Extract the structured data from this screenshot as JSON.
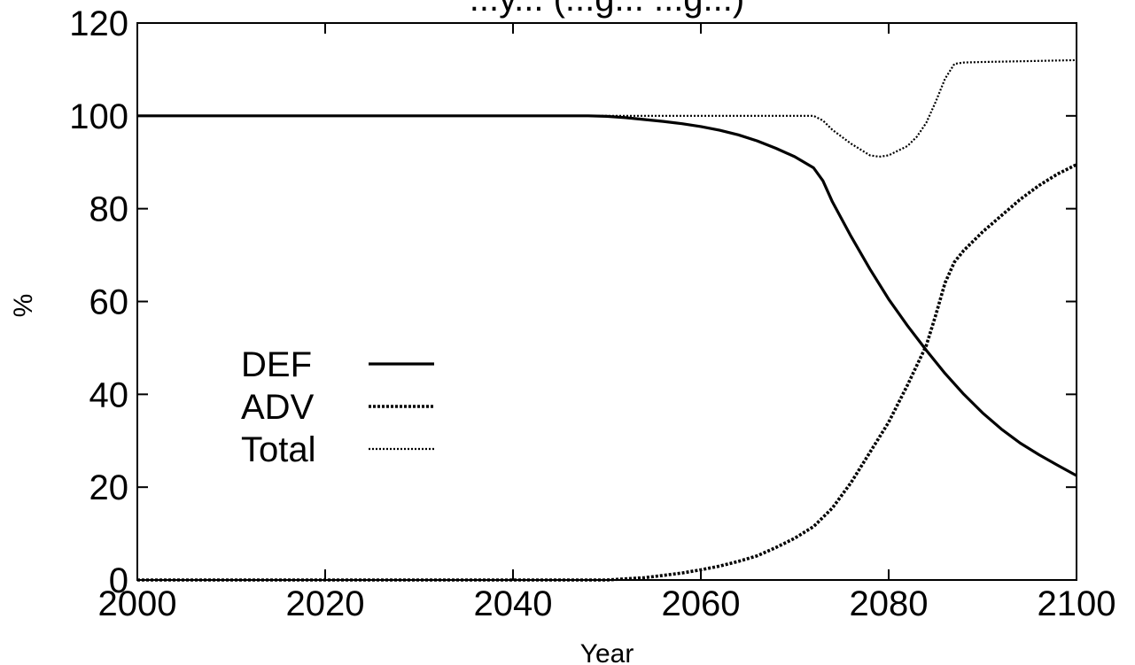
{
  "chart_data": {
    "type": "line",
    "title": "...y... (...g... ...g...)",
    "xlabel": "Year",
    "ylabel": "%",
    "xlim": [
      2000,
      2100
    ],
    "ylim": [
      0,
      120
    ],
    "xticks": [
      2000,
      2020,
      2040,
      2060,
      2080,
      2100
    ],
    "yticks": [
      0,
      20,
      40,
      60,
      80,
      100,
      120
    ],
    "grid": false,
    "legend_position": "center-left",
    "series": [
      {
        "name": "DEF",
        "style": "solid",
        "color": "#000000",
        "points": [
          [
            2000,
            100
          ],
          [
            2010,
            100
          ],
          [
            2020,
            100
          ],
          [
            2030,
            100
          ],
          [
            2040,
            100
          ],
          [
            2048,
            100
          ],
          [
            2050,
            99.9
          ],
          [
            2052,
            99.6
          ],
          [
            2054,
            99.2
          ],
          [
            2056,
            98.8
          ],
          [
            2058,
            98.3
          ],
          [
            2060,
            97.7
          ],
          [
            2062,
            96.9
          ],
          [
            2064,
            95.9
          ],
          [
            2066,
            94.6
          ],
          [
            2068,
            93.0
          ],
          [
            2070,
            91.2
          ],
          [
            2072,
            88.8
          ],
          [
            2073,
            86.0
          ],
          [
            2074,
            81.5
          ],
          [
            2076,
            74.0
          ],
          [
            2078,
            67.0
          ],
          [
            2080,
            60.5
          ],
          [
            2082,
            54.8
          ],
          [
            2084,
            49.5
          ],
          [
            2086,
            44.5
          ],
          [
            2088,
            40.0
          ],
          [
            2090,
            36.0
          ],
          [
            2092,
            32.5
          ],
          [
            2094,
            29.5
          ],
          [
            2096,
            27.0
          ],
          [
            2098,
            24.7
          ],
          [
            2100,
            22.5
          ]
        ]
      },
      {
        "name": "ADV",
        "style": "dashed",
        "color": "#000000",
        "points": [
          [
            2000,
            0
          ],
          [
            2010,
            0
          ],
          [
            2020,
            0
          ],
          [
            2030,
            0
          ],
          [
            2040,
            0
          ],
          [
            2050,
            0
          ],
          [
            2054,
            0.5
          ],
          [
            2056,
            1.0
          ],
          [
            2058,
            1.5
          ],
          [
            2060,
            2.2
          ],
          [
            2062,
            3.0
          ],
          [
            2064,
            4.0
          ],
          [
            2066,
            5.2
          ],
          [
            2068,
            7.0
          ],
          [
            2070,
            9.0
          ],
          [
            2072,
            11.5
          ],
          [
            2074,
            15.5
          ],
          [
            2076,
            21.0
          ],
          [
            2078,
            27.5
          ],
          [
            2080,
            34.0
          ],
          [
            2082,
            42.0
          ],
          [
            2084,
            50.5
          ],
          [
            2085,
            57.0
          ],
          [
            2086,
            64.0
          ],
          [
            2087,
            68.5
          ],
          [
            2088,
            71.0
          ],
          [
            2090,
            75.0
          ],
          [
            2092,
            78.5
          ],
          [
            2094,
            82.0
          ],
          [
            2096,
            85.0
          ],
          [
            2098,
            87.5
          ],
          [
            2100,
            89.5
          ]
        ]
      },
      {
        "name": "Total",
        "style": "dotted",
        "color": "#000000",
        "points": [
          [
            2000,
            100
          ],
          [
            2020,
            100
          ],
          [
            2040,
            100
          ],
          [
            2060,
            100
          ],
          [
            2070,
            100
          ],
          [
            2072,
            100
          ],
          [
            2073,
            99.0
          ],
          [
            2074,
            97.0
          ],
          [
            2076,
            94.0
          ],
          [
            2078,
            91.5
          ],
          [
            2079,
            91.2
          ],
          [
            2080,
            91.5
          ],
          [
            2082,
            93.5
          ],
          [
            2083,
            95.5
          ],
          [
            2084,
            98.5
          ],
          [
            2085,
            103.0
          ],
          [
            2086,
            108.0
          ],
          [
            2087,
            111.2
          ],
          [
            2088,
            111.5
          ],
          [
            2090,
            111.6
          ],
          [
            2095,
            111.8
          ],
          [
            2100,
            112.0
          ]
        ]
      }
    ]
  }
}
